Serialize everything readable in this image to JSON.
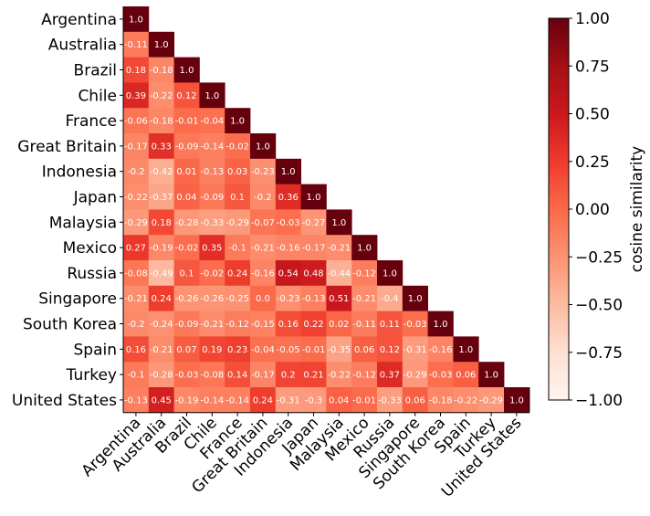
{
  "chart_data": {
    "type": "heatmap",
    "layout": "lower-triangle",
    "row_labels": [
      "Argentina",
      "Australia",
      "Brazil",
      "Chile",
      "France",
      "Great Britain",
      "Indonesia",
      "Japan",
      "Malaysia",
      "Mexico",
      "Russia",
      "Singapore",
      "South Korea",
      "Spain",
      "Turkey",
      "United States"
    ],
    "col_labels": [
      "Argentina",
      "Australia",
      "Brazil",
      "Chile",
      "France",
      "Great Britain",
      "Indonesia",
      "Japan",
      "Malaysia",
      "Mexico",
      "Russia",
      "Singapore",
      "South Korea",
      "Spain",
      "Turkey",
      "United States"
    ],
    "values": [
      [
        1.0
      ],
      [
        -0.11,
        1.0
      ],
      [
        0.18,
        -0.18,
        1.0
      ],
      [
        0.39,
        -0.22,
        0.12,
        1.0
      ],
      [
        -0.06,
        -0.18,
        -0.01,
        -0.04,
        1.0
      ],
      [
        -0.17,
        0.33,
        -0.09,
        -0.14,
        -0.02,
        1.0
      ],
      [
        -0.2,
        -0.42,
        0.01,
        -0.13,
        0.03,
        -0.23,
        1.0
      ],
      [
        -0.22,
        -0.37,
        0.04,
        -0.09,
        0.1,
        -0.2,
        0.36,
        1.0
      ],
      [
        -0.29,
        0.18,
        -0.28,
        -0.33,
        -0.29,
        -0.07,
        -0.03,
        -0.27,
        1.0
      ],
      [
        0.27,
        -0.19,
        -0.02,
        0.35,
        -0.1,
        -0.21,
        -0.16,
        -0.17,
        -0.21,
        1.0
      ],
      [
        -0.08,
        -0.49,
        0.1,
        -0.02,
        0.24,
        -0.16,
        0.54,
        0.48,
        -0.44,
        -0.12,
        1.0
      ],
      [
        -0.21,
        0.24,
        -0.26,
        -0.26,
        -0.25,
        0.0,
        -0.23,
        -0.13,
        0.51,
        -0.21,
        -0.4,
        1.0
      ],
      [
        -0.2,
        -0.24,
        -0.09,
        -0.21,
        -0.12,
        -0.15,
        0.16,
        0.22,
        0.02,
        -0.11,
        0.11,
        -0.03,
        1.0
      ],
      [
        0.16,
        -0.21,
        0.07,
        0.19,
        0.23,
        -0.04,
        -0.05,
        -0.01,
        -0.35,
        0.06,
        0.12,
        -0.31,
        -0.16,
        1.0
      ],
      [
        -0.1,
        -0.28,
        -0.03,
        -0.08,
        0.14,
        -0.17,
        0.2,
        0.21,
        -0.22,
        -0.12,
        0.37,
        -0.29,
        -0.03,
        0.06,
        1.0
      ],
      [
        -0.13,
        0.45,
        -0.19,
        -0.14,
        -0.14,
        0.24,
        -0.31,
        -0.3,
        0.04,
        -0.01,
        -0.33,
        0.06,
        -0.18,
        -0.22,
        -0.29,
        1.0
      ]
    ],
    "value_range": [
      -1.0,
      1.0
    ],
    "colormap": "Reds",
    "colorbar": {
      "label": "cosine similarity",
      "ticks": [
        1.0,
        0.75,
        0.5,
        0.25,
        0.0,
        -0.25,
        -0.5,
        -0.75,
        -1.0
      ],
      "tick_labels": [
        "1.00",
        "0.75",
        "0.50",
        "0.25",
        "0.00",
        "−0.25",
        "−0.50",
        "−0.75",
        "−1.00"
      ]
    },
    "colors": {
      "min": "#fff5f0",
      "max": "#67000d",
      "text_light": "#ffffff",
      "axis": "#000000"
    }
  }
}
